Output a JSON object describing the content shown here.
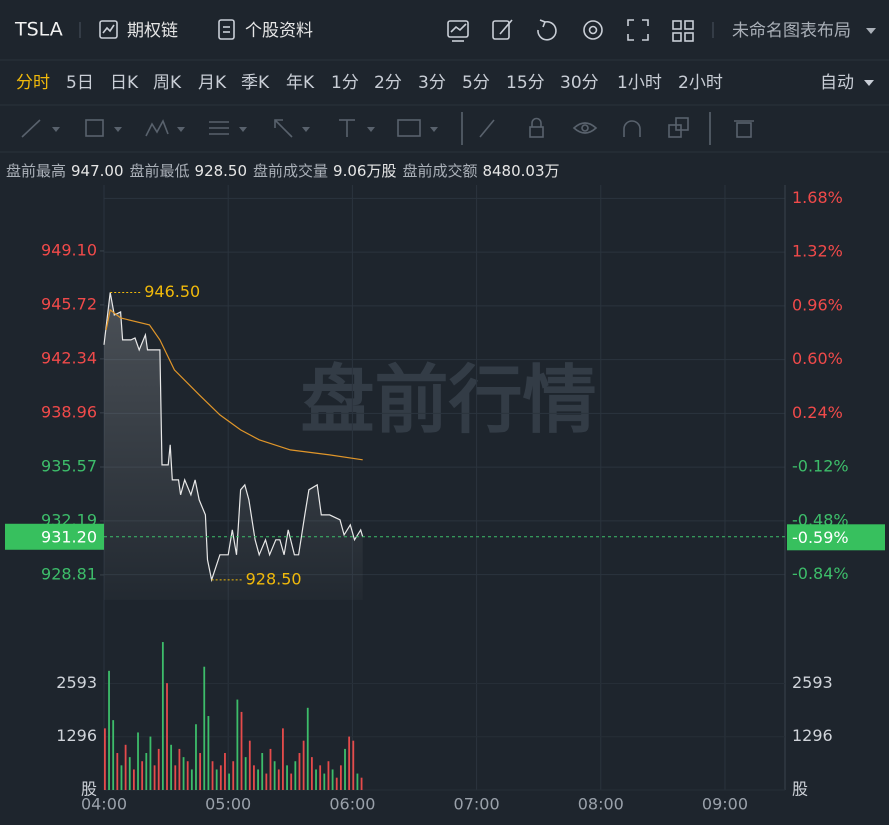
{
  "header": {
    "symbol": "TSLA",
    "links": [
      "期权链",
      "个股资料"
    ],
    "layout": "未命名图表布局"
  },
  "periods": {
    "items": [
      "分时",
      "5日",
      "日K",
      "周K",
      "月K",
      "季K",
      "年K",
      "1分",
      "2分",
      "3分",
      "5分",
      "15分",
      "30分",
      "1小时",
      "2小时"
    ],
    "active": 0,
    "auto": "自动"
  },
  "info": [
    {
      "label": "盘前最高",
      "value": "947.00"
    },
    {
      "label": "盘前最低",
      "value": "928.50"
    },
    {
      "label": "盘前成交量",
      "value": "9.06万股"
    },
    {
      "label": "盘前成交额",
      "value": "8480.03万"
    }
  ],
  "chart_data": {
    "type": "line",
    "watermark": "盘前行情",
    "up_color": "#f04a4a",
    "down_color": "#3dbd6a",
    "xlim": [
      0,
      329
    ],
    "xticks": [
      {
        "value": 0,
        "label": "04:00"
      },
      {
        "value": 60,
        "label": "05:00"
      },
      {
        "value": 120,
        "label": "06:00"
      },
      {
        "value": 180,
        "label": "07:00"
      },
      {
        "value": 240,
        "label": "08:00"
      },
      {
        "value": 300,
        "label": "09:00"
      }
    ],
    "ylim": [
      927.24,
      953.23
    ],
    "yticks": [
      928.81,
      932.19,
      935.57,
      938.96,
      942.34,
      945.72,
      {
        "value": 949.1,
        "label": "949.10"
      }
    ],
    "y2lim": [
      -1.01,
      1.77
    ],
    "y2ticks": [
      {
        "value": -0.84,
        "label": "-0.84%"
      },
      {
        "value": -0.48,
        "label": "-0.48%"
      },
      {
        "value": -0.12,
        "label": "-0.12%"
      },
      {
        "value": 0.24,
        "label": "0.24%"
      },
      {
        "value": 0.6,
        "label": "0.60%"
      },
      {
        "value": 0.96,
        "label": "0.96%"
      },
      {
        "value": 1.32,
        "label": "1.32%"
      },
      {
        "value": 1.68,
        "label": "1.68%"
      }
    ],
    "series": [
      {
        "color": "#e8e8e8",
        "x": [
          0,
          3,
          5,
          8,
          9,
          13,
          15,
          17,
          20,
          21,
          27,
          28,
          31,
          32,
          33,
          36,
          37,
          39,
          42,
          44,
          46,
          49,
          50,
          52,
          56,
          60,
          62,
          64,
          66,
          68,
          70,
          73,
          75,
          78,
          80,
          83,
          85,
          87,
          89,
          92,
          94,
          97,
          99,
          103,
          105,
          109,
          114,
          116,
          119,
          121,
          124,
          125
        ],
        "values": [
          943.22,
          946.5,
          945.09,
          945.28,
          943.53,
          943.53,
          943.65,
          942.9,
          943.84,
          942.9,
          942.9,
          935.7,
          935.7,
          936.96,
          934.76,
          934.76,
          933.83,
          934.76,
          933.83,
          934.76,
          933.51,
          932.57,
          929.76,
          928.5,
          930.07,
          930.07,
          931.63,
          930.07,
          934.14,
          934.45,
          933.51,
          931.01,
          930.07,
          931.01,
          930.07,
          931.01,
          931.01,
          930.07,
          931.63,
          930.07,
          930.07,
          932.57,
          934.14,
          934.45,
          932.57,
          932.57,
          932.26,
          931.32,
          931.95,
          931.01,
          931.63,
          931.2
        ]
      },
      {
        "color": "#e0962a",
        "x": [
          1,
          3,
          8,
          22,
          27,
          34,
          46,
          56,
          66,
          75,
          90,
          109,
          125
        ],
        "values": [
          944.15,
          945.41,
          944.91,
          944.47,
          943.53,
          941.65,
          940.09,
          938.83,
          937.89,
          937.27,
          936.64,
          936.33,
          936.02
        ]
      }
    ],
    "last": {
      "value": 931.2,
      "label": "931.20",
      "pct": {
        "value": -0.59,
        "label": "-0.59%"
      }
    },
    "annotations": [
      {
        "x": 3,
        "value": 946.5,
        "label": "946.50"
      },
      {
        "x": 52,
        "value": 928.5,
        "label": "928.50"
      }
    ],
    "volume": {
      "ylim": [
        0,
        3650
      ],
      "yticks": [
        {
          "value": 0,
          "label": "股"
        },
        1296,
        2593
      ],
      "x": [
        0,
        2,
        4,
        6,
        8,
        10,
        12,
        14,
        16,
        18,
        20,
        22,
        24,
        26,
        28,
        30,
        32,
        34,
        36,
        38,
        40,
        42,
        44,
        46,
        48,
        50,
        52,
        54,
        56,
        58,
        60,
        62,
        64,
        66,
        68,
        70,
        72,
        74,
        76,
        78,
        80,
        82,
        84,
        86,
        88,
        90,
        92,
        94,
        96,
        98,
        100,
        102,
        104,
        106,
        108,
        110,
        112,
        114,
        116,
        118,
        120,
        122,
        124
      ],
      "values": [
        1500,
        2900,
        1700,
        900,
        600,
        1100,
        800,
        500,
        1400,
        700,
        900,
        1300,
        600,
        1000,
        3600,
        2600,
        1100,
        600,
        1000,
        800,
        700,
        500,
        1600,
        900,
        3000,
        1800,
        700,
        500,
        600,
        900,
        400,
        700,
        2200,
        1900,
        800,
        1200,
        600,
        500,
        900,
        400,
        1000,
        700,
        500,
        1500,
        600,
        400,
        700,
        900,
        1200,
        2000,
        800,
        500,
        600,
        400,
        700,
        500,
        300,
        600,
        1000,
        1300,
        1200,
        400,
        300
      ],
      "colors": [
        "#e64b4b",
        "#3dbd6a",
        "#3dbd6a",
        "#e64b4b",
        "#3dbd6a",
        "#e64b4b",
        "#3dbd6a",
        "#e64b4b",
        "#3dbd6a",
        "#e64b4b",
        "#3dbd6a",
        "#3dbd6a",
        "#e64b4b",
        "#e64b4b",
        "#3dbd6a",
        "#e64b4b",
        "#3dbd6a",
        "#e64b4b",
        "#e64b4b",
        "#3dbd6a",
        "#e64b4b",
        "#3dbd6a",
        "#3dbd6a",
        "#e64b4b",
        "#3dbd6a",
        "#3dbd6a",
        "#e64b4b",
        "#3dbd6a",
        "#e64b4b",
        "#e64b4b",
        "#3dbd6a",
        "#e64b4b",
        "#3dbd6a",
        "#e64b4b",
        "#3dbd6a",
        "#e64b4b",
        "#e64b4b",
        "#3dbd6a",
        "#3dbd6a",
        "#e64b4b",
        "#e64b4b",
        "#3dbd6a",
        "#e64b4b",
        "#e64b4b",
        "#3dbd6a",
        "#e64b4b",
        "#3dbd6a",
        "#e64b4b",
        "#e64b4b",
        "#3dbd6a",
        "#e64b4b",
        "#3dbd6a",
        "#e64b4b",
        "#3dbd6a",
        "#e64b4b",
        "#3dbd6a",
        "#e64b4b",
        "#e64b4b",
        "#3dbd6a",
        "#e64b4b",
        "#e64b4b",
        "#3dbd6a",
        "#e64b4b"
      ]
    }
  }
}
